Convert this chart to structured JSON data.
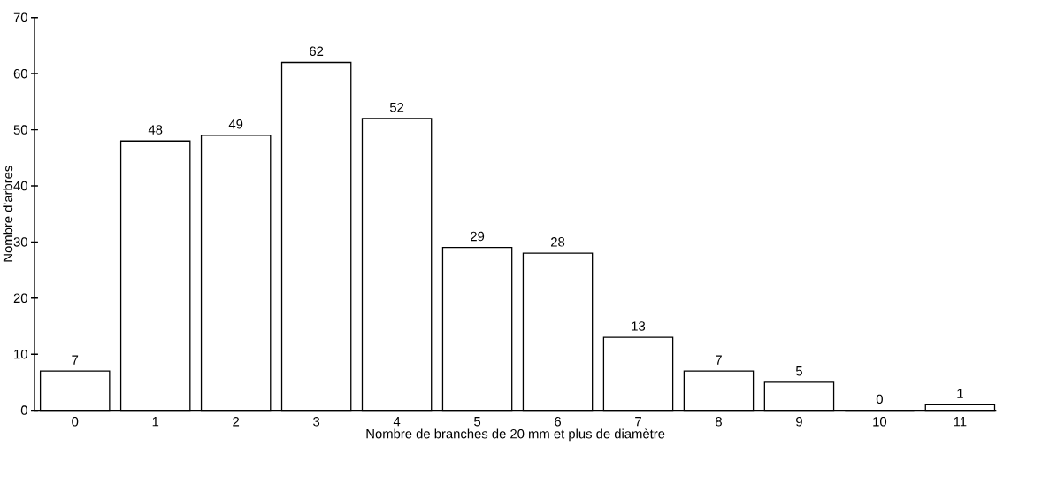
{
  "chart_data": {
    "type": "bar",
    "xlabel": "Nombre de branches de 20 mm et plus de diamètre",
    "ylabel": "Nombre d'arbres",
    "categories": [
      "0",
      "1",
      "2",
      "3",
      "4",
      "5",
      "6",
      "7",
      "8",
      "9",
      "10",
      "11"
    ],
    "values": [
      7,
      48,
      49,
      62,
      52,
      29,
      28,
      13,
      7,
      5,
      0,
      1
    ],
    "color": "#ffffff",
    "ylim": [
      0,
      70
    ],
    "yticks": [
      0,
      10,
      20,
      30,
      40,
      50,
      60,
      70
    ],
    "data_labels": true,
    "grid": false
  }
}
